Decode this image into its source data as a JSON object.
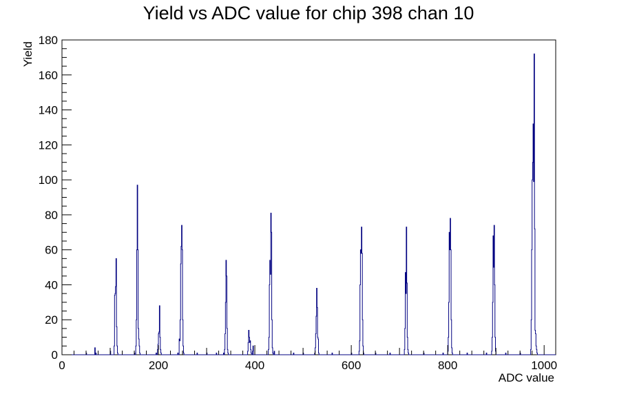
{
  "chart_data": {
    "type": "histogram",
    "title": "Yield vs ADC value for chip 398 chan 10",
    "xlabel": "ADC value",
    "ylabel": "Yield",
    "xlim": [
      0,
      1024
    ],
    "ylim": [
      0,
      180
    ],
    "x_ticks": [
      0,
      200,
      400,
      600,
      800,
      1000
    ],
    "y_ticks": [
      0,
      20,
      40,
      60,
      80,
      100,
      120,
      140,
      160,
      180
    ],
    "line_color": "#000080",
    "bins": [
      [
        50,
        1
      ],
      [
        68,
        4
      ],
      [
        70,
        1
      ],
      [
        100,
        2
      ],
      [
        108,
        5
      ],
      [
        109,
        34
      ],
      [
        110,
        35
      ],
      [
        111,
        39
      ],
      [
        112,
        55
      ],
      [
        113,
        16
      ],
      [
        114,
        5
      ],
      [
        115,
        1
      ],
      [
        150,
        1
      ],
      [
        153,
        5
      ],
      [
        154,
        20
      ],
      [
        155,
        60
      ],
      [
        156,
        97
      ],
      [
        157,
        60
      ],
      [
        158,
        15
      ],
      [
        159,
        9
      ],
      [
        160,
        5
      ],
      [
        161,
        1
      ],
      [
        195,
        1
      ],
      [
        198,
        3
      ],
      [
        199,
        6
      ],
      [
        200,
        12
      ],
      [
        201,
        13
      ],
      [
        202,
        28
      ],
      [
        203,
        10
      ],
      [
        204,
        3
      ],
      [
        205,
        1
      ],
      [
        240,
        1
      ],
      [
        243,
        9
      ],
      [
        244,
        8
      ],
      [
        245,
        20
      ],
      [
        246,
        52
      ],
      [
        247,
        62
      ],
      [
        248,
        74
      ],
      [
        249,
        60
      ],
      [
        250,
        20
      ],
      [
        251,
        5
      ],
      [
        252,
        1
      ],
      [
        280,
        1
      ],
      [
        300,
        1
      ],
      [
        320,
        1
      ],
      [
        335,
        1
      ],
      [
        337,
        3
      ],
      [
        338,
        12
      ],
      [
        339,
        30
      ],
      [
        340,
        54
      ],
      [
        341,
        45
      ],
      [
        342,
        15
      ],
      [
        343,
        3
      ],
      [
        344,
        1
      ],
      [
        385,
        2
      ],
      [
        386,
        7
      ],
      [
        387,
        14
      ],
      [
        388,
        10
      ],
      [
        389,
        7
      ],
      [
        390,
        8
      ],
      [
        391,
        3
      ],
      [
        392,
        1
      ],
      [
        395,
        2
      ],
      [
        396,
        5
      ],
      [
        428,
        3
      ],
      [
        429,
        10
      ],
      [
        430,
        40
      ],
      [
        431,
        54
      ],
      [
        432,
        46
      ],
      [
        433,
        81
      ],
      [
        434,
        70
      ],
      [
        435,
        20
      ],
      [
        436,
        4
      ],
      [
        437,
        1
      ],
      [
        440,
        2
      ],
      [
        480,
        1
      ],
      [
        500,
        1
      ],
      [
        524,
        1
      ],
      [
        525,
        4
      ],
      [
        526,
        12
      ],
      [
        527,
        22
      ],
      [
        528,
        38
      ],
      [
        529,
        27
      ],
      [
        530,
        10
      ],
      [
        531,
        9
      ],
      [
        532,
        1
      ],
      [
        560,
        1
      ],
      [
        600,
        1
      ],
      [
        616,
        2
      ],
      [
        617,
        8
      ],
      [
        618,
        40
      ],
      [
        619,
        60
      ],
      [
        620,
        58
      ],
      [
        621,
        73
      ],
      [
        622,
        58
      ],
      [
        623,
        20
      ],
      [
        624,
        5
      ],
      [
        625,
        1
      ],
      [
        650,
        1
      ],
      [
        680,
        1
      ],
      [
        710,
        3
      ],
      [
        711,
        15
      ],
      [
        712,
        47
      ],
      [
        713,
        35
      ],
      [
        714,
        73
      ],
      [
        715,
        41
      ],
      [
        716,
        10
      ],
      [
        717,
        3
      ],
      [
        718,
        1
      ],
      [
        750,
        1
      ],
      [
        790,
        1
      ],
      [
        800,
        2
      ],
      [
        801,
        10
      ],
      [
        802,
        30
      ],
      [
        803,
        70
      ],
      [
        804,
        60
      ],
      [
        805,
        78
      ],
      [
        806,
        60
      ],
      [
        807,
        20
      ],
      [
        808,
        4
      ],
      [
        809,
        1
      ],
      [
        840,
        1
      ],
      [
        880,
        1
      ],
      [
        891,
        2
      ],
      [
        892,
        10
      ],
      [
        893,
        30
      ],
      [
        894,
        68
      ],
      [
        895,
        50
      ],
      [
        896,
        74
      ],
      [
        897,
        40
      ],
      [
        898,
        10
      ],
      [
        899,
        2
      ],
      [
        920,
        1
      ],
      [
        950,
        1
      ],
      [
        972,
        3
      ],
      [
        973,
        20
      ],
      [
        974,
        60
      ],
      [
        975,
        100
      ],
      [
        976,
        110
      ],
      [
        977,
        132
      ],
      [
        978,
        99
      ],
      [
        979,
        172
      ],
      [
        980,
        72
      ],
      [
        981,
        14
      ],
      [
        982,
        12
      ],
      [
        983,
        5
      ],
      [
        984,
        3
      ],
      [
        985,
        1
      ]
    ]
  }
}
